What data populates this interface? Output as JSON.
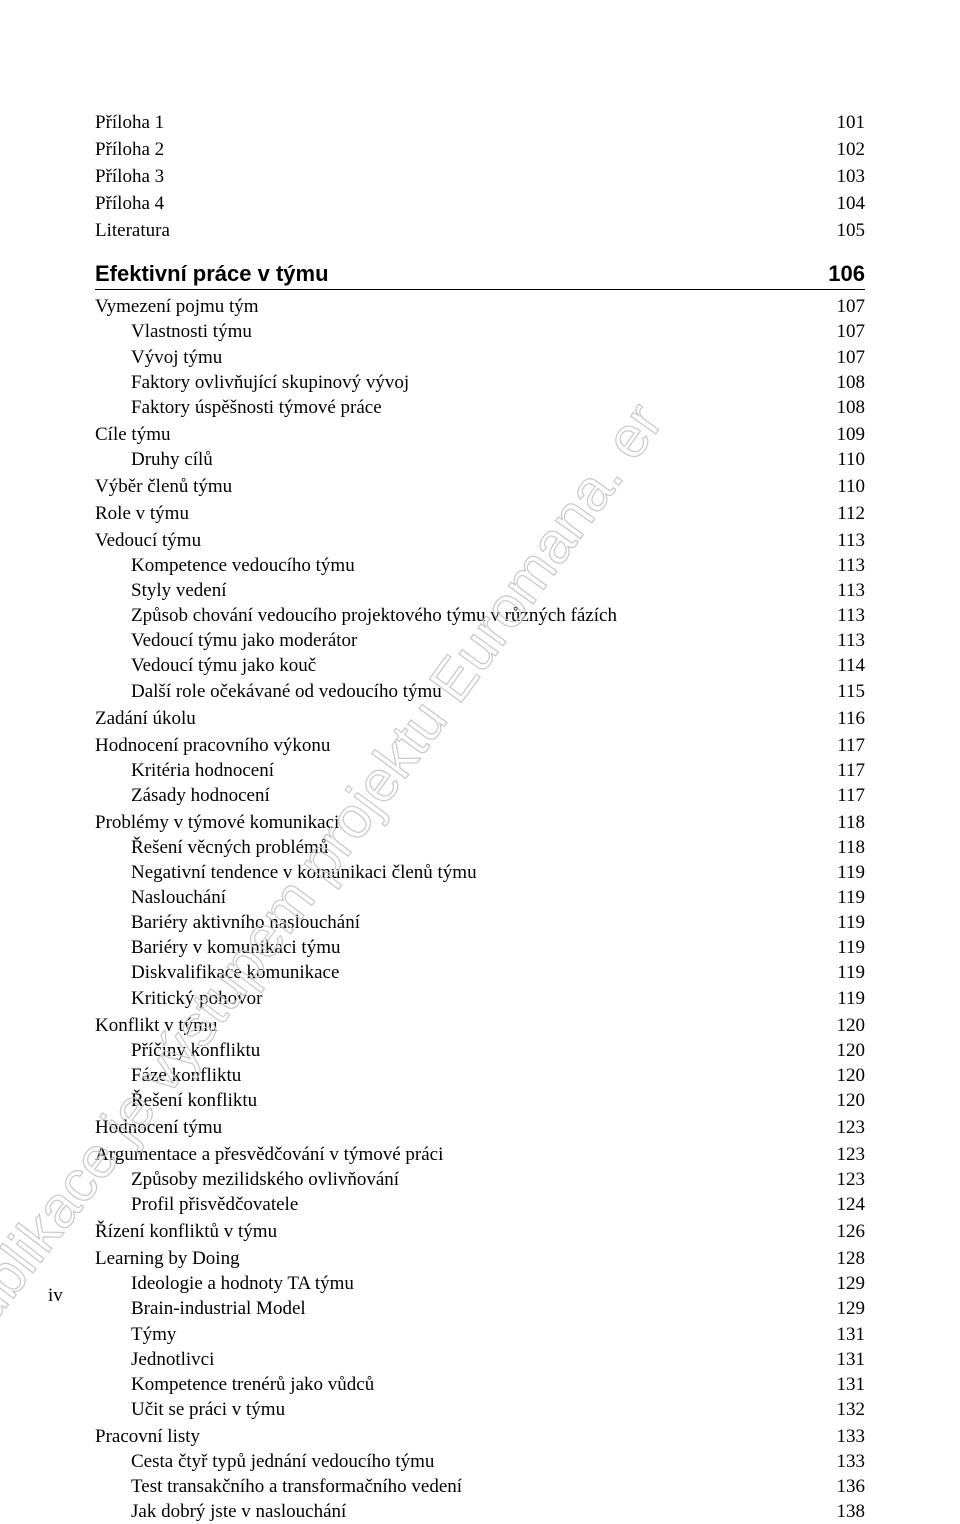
{
  "watermark_text": "publikace je výstupem projektu Euromana. er",
  "watermark_color": "#d9d9d9",
  "watermark_text_color": "#b0b0b0",
  "page_footer": "iv",
  "entries": [
    {
      "label": "Příloha 1",
      "page": "101",
      "indent": 0
    },
    {
      "label": "Příloha 2",
      "page": "102",
      "indent": 0
    },
    {
      "label": "Příloha 3",
      "page": "103",
      "indent": 0
    },
    {
      "label": "Příloha 4",
      "page": "104",
      "indent": 0
    },
    {
      "label": "Literatura",
      "page": "105",
      "indent": 0
    }
  ],
  "section": {
    "title": "Efektivní práce v týmu",
    "page": "106"
  },
  "entries2": [
    {
      "label": "Vymezení pojmu tým",
      "page": "107",
      "indent": 0
    },
    {
      "label": "Vlastnosti týmu",
      "page": "107",
      "indent": 1
    },
    {
      "label": "Vývoj týmu",
      "page": "107",
      "indent": 1
    },
    {
      "label": "Faktory ovlivňující skupinový vývoj",
      "page": "108",
      "indent": 1
    },
    {
      "label": "Faktory úspěšnosti týmové práce",
      "page": "108",
      "indent": 1
    },
    {
      "label": "Cíle týmu",
      "page": "109",
      "indent": 0
    },
    {
      "label": "Druhy cílů",
      "page": "110",
      "indent": 1
    },
    {
      "label": "Výběr členů týmu",
      "page": "110",
      "indent": 0
    },
    {
      "label": "Role v týmu",
      "page": "112",
      "indent": 0
    },
    {
      "label": "Vedoucí týmu",
      "page": "113",
      "indent": 0
    },
    {
      "label": "Kompetence vedoucího týmu",
      "page": "113",
      "indent": 1
    },
    {
      "label": "Styly vedení",
      "page": "113",
      "indent": 1
    },
    {
      "label": "Způsob chování vedoucího projektového týmu v různých fázích",
      "page": "113",
      "indent": 1
    },
    {
      "label": "Vedoucí týmu jako moderátor",
      "page": "113",
      "indent": 1
    },
    {
      "label": "Vedoucí týmu jako kouč",
      "page": "114",
      "indent": 1
    },
    {
      "label": "Další role očekávané od vedoucího týmu",
      "page": "115",
      "indent": 1
    },
    {
      "label": "Zadání úkolu",
      "page": "116",
      "indent": 0
    },
    {
      "label": "Hodnocení pracovního výkonu",
      "page": "117",
      "indent": 0
    },
    {
      "label": "Kritéria hodnocení",
      "page": "117",
      "indent": 1
    },
    {
      "label": "Zásady hodnocení",
      "page": "117",
      "indent": 1
    },
    {
      "label": "Problémy v týmové komunikaci",
      "page": "118",
      "indent": 0
    },
    {
      "label": "Řešení věcných problémů",
      "page": "118",
      "indent": 1
    },
    {
      "label": "Negativní tendence v komunikaci členů týmu",
      "page": "119",
      "indent": 1
    },
    {
      "label": "Naslouchání",
      "page": "119",
      "indent": 1
    },
    {
      "label": "Bariéry aktivního naslouchání",
      "page": "119",
      "indent": 1
    },
    {
      "label": "Bariéry v komunikaci týmu",
      "page": "119",
      "indent": 1
    },
    {
      "label": "Diskvalifikace komunikace",
      "page": "119",
      "indent": 1
    },
    {
      "label": "Kritický pohovor",
      "page": "119",
      "indent": 1
    },
    {
      "label": "Konflikt v týmu",
      "page": "120",
      "indent": 0
    },
    {
      "label": "Příčiny konfliktu",
      "page": "120",
      "indent": 1
    },
    {
      "label": "Fáze konfliktu",
      "page": "120",
      "indent": 1
    },
    {
      "label": "Řešení konfliktu",
      "page": "120",
      "indent": 1
    },
    {
      "label": "Hodnocení týmu",
      "page": "123",
      "indent": 0
    },
    {
      "label": "Argumentace a přesvědčování v týmové práci",
      "page": "123",
      "indent": 0
    },
    {
      "label": "Způsoby mezilidského ovlivňování",
      "page": "123",
      "indent": 1
    },
    {
      "label": "Profil přisvědčovatele",
      "page": "124",
      "indent": 1
    },
    {
      "label": "Řízení konfliktů v týmu",
      "page": "126",
      "indent": 0
    },
    {
      "label": "Learning by Doing",
      "page": "128",
      "indent": 0
    },
    {
      "label": "Ideologie a hodnoty TA týmu",
      "page": "129",
      "indent": 1
    },
    {
      "label": "Brain-industrial Model",
      "page": "129",
      "indent": 1
    },
    {
      "label": "Týmy",
      "page": "131",
      "indent": 1
    },
    {
      "label": "Jednotlivci",
      "page": "131",
      "indent": 1
    },
    {
      "label": "Kompetence trenérů jako vůdců",
      "page": "131",
      "indent": 1
    },
    {
      "label": "Učit se práci v týmu",
      "page": "132",
      "indent": 1
    },
    {
      "label": "Pracovní listy",
      "page": "133",
      "indent": 0
    },
    {
      "label": "Cesta čtyř typů jednání vedoucího týmu",
      "page": "133",
      "indent": 1
    },
    {
      "label": "Test transakčního a transformačního vedení",
      "page": "136",
      "indent": 1
    },
    {
      "label": "Jak dobrý jste v naslouchání",
      "page": "138",
      "indent": 1
    }
  ]
}
